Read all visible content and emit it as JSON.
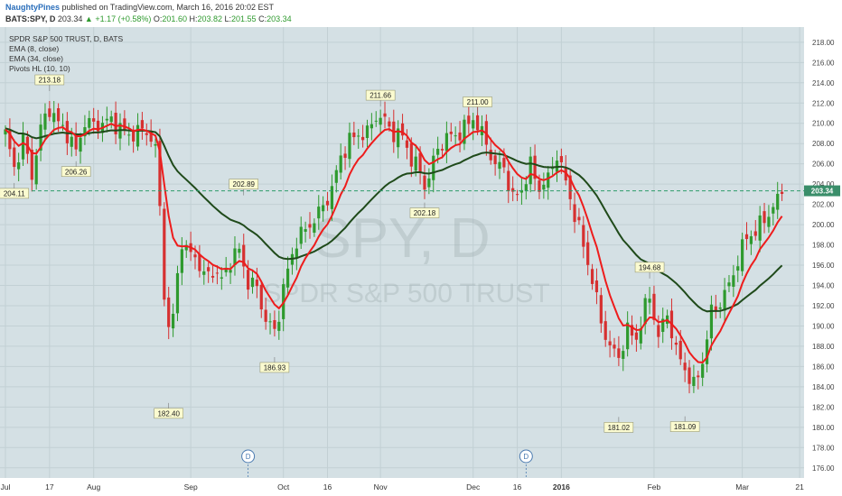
{
  "header": {
    "author": "NaughtyPines",
    "published": "published on TradingView.com, March 16, 2016 20:02 EST",
    "symbol": "BATS:SPY, D",
    "last": "203.34",
    "change": "+1.17 (+0.58%)",
    "o_label": "O:",
    "o_value": "201.60",
    "h_label": "H:",
    "h_value": "203.82",
    "l_label": "L:",
    "l_value": "201.55",
    "c_label": "C:",
    "c_value": "203.34"
  },
  "legend": {
    "title": "SPDR S&P 500 TRUST, D, BATS",
    "ema8": "EMA (8, close)",
    "ema34": "EMA (34, close)",
    "pivots": "Pivots HL (10, 10)"
  },
  "watermark": {
    "symbol": "SPY, D",
    "name": "SPDR S&P 500 TRUST"
  },
  "colors": {
    "background": "#d4e0e4",
    "grid": "#c2d0d4",
    "up": "#2e9a2e",
    "down": "#d63030",
    "ema8": "#ee1c1c",
    "ema34": "#1f4a1a",
    "price_line": "#2e9a6a",
    "pivot_label_bg": "#fbfbd0"
  },
  "chart_data": {
    "type": "candlestick",
    "yaxis_ticks": [
      "218.00",
      "216.00",
      "214.00",
      "212.00",
      "210.00",
      "208.00",
      "206.00",
      "204.00",
      "202.00",
      "200.00",
      "198.00",
      "196.00",
      "194.00",
      "192.00",
      "190.00",
      "188.00",
      "186.00",
      "184.00",
      "182.00",
      "180.00",
      "178.00",
      "176.00"
    ],
    "ylim": [
      175,
      219.5
    ],
    "xaxis_ticks": [
      {
        "label": "Jul",
        "i": 0
      },
      {
        "label": "17",
        "i": 10
      },
      {
        "label": "Aug",
        "i": 20
      },
      {
        "label": "Sep",
        "i": 42
      },
      {
        "label": "Oct",
        "i": 63
      },
      {
        "label": "16",
        "i": 73
      },
      {
        "label": "Nov",
        "i": 85
      },
      {
        "label": "Dec",
        "i": 106
      },
      {
        "label": "16",
        "i": 116
      },
      {
        "label": "2016",
        "i": 126
      },
      {
        "label": "Feb",
        "i": 147
      },
      {
        "label": "Mar",
        "i": 167
      },
      {
        "label": "21",
        "i": 180
      }
    ],
    "n_slots": 181,
    "current_price": 203.34,
    "current_label": "203.34",
    "pivots": [
      {
        "label": "213.18",
        "i": 10,
        "value": 213.18,
        "type": "high"
      },
      {
        "label": "206.26",
        "i": 16,
        "value": 206.26,
        "type": "low"
      },
      {
        "label": "204.11",
        "i": 2,
        "value": 204.11,
        "type": "low"
      },
      {
        "label": "202.89",
        "i": 54,
        "value": 202.89,
        "type": "high"
      },
      {
        "label": "182.40",
        "i": 37,
        "value": 182.4,
        "type": "low"
      },
      {
        "label": "186.93",
        "i": 61,
        "value": 186.93,
        "type": "low"
      },
      {
        "label": "211.66",
        "i": 85,
        "value": 211.66,
        "type": "high"
      },
      {
        "label": "202.18",
        "i": 95,
        "value": 202.18,
        "type": "low"
      },
      {
        "label": "211.00",
        "i": 107,
        "value": 211.0,
        "type": "high"
      },
      {
        "label": "194.68",
        "i": 146,
        "value": 194.68,
        "type": "high"
      },
      {
        "label": "181.02",
        "i": 139,
        "value": 181.02,
        "type": "low"
      },
      {
        "label": "181.09",
        "i": 154,
        "value": 181.09,
        "type": "low"
      }
    ],
    "dividend_markers": [
      {
        "label": "D",
        "i": 55
      },
      {
        "label": "D",
        "i": 118
      }
    ],
    "keypoints": [
      [
        0,
        209.0
      ],
      [
        2,
        205.5
      ],
      [
        4,
        208.5
      ],
      [
        6,
        204.8
      ],
      [
        8,
        209.5
      ],
      [
        10,
        211.5
      ],
      [
        12,
        210.0
      ],
      [
        14,
        209.0
      ],
      [
        16,
        207.2
      ],
      [
        18,
        210.2
      ],
      [
        20,
        209.8
      ],
      [
        22,
        210.0
      ],
      [
        24,
        210.3
      ],
      [
        26,
        209.5
      ],
      [
        28,
        208.8
      ],
      [
        30,
        209.2
      ],
      [
        32,
        209.3
      ],
      [
        34,
        207.5
      ],
      [
        35,
        201.5
      ],
      [
        36,
        193.5
      ],
      [
        37,
        189.5
      ],
      [
        38,
        191.0
      ],
      [
        39,
        195.0
      ],
      [
        40,
        198.5
      ],
      [
        41,
        197.3
      ],
      [
        43,
        197.0
      ],
      [
        45,
        194.8
      ],
      [
        47,
        195.5
      ],
      [
        49,
        194.5
      ],
      [
        51,
        196.5
      ],
      [
        53,
        197.5
      ],
      [
        55,
        194.3
      ],
      [
        57,
        193.8
      ],
      [
        59,
        190.5
      ],
      [
        61,
        189.5
      ],
      [
        62,
        191.3
      ],
      [
        63,
        193.6
      ],
      [
        64,
        195.5
      ],
      [
        66,
        198.5
      ],
      [
        68,
        199.5
      ],
      [
        70,
        200.5
      ],
      [
        72,
        201.8
      ],
      [
        74,
        203.5
      ],
      [
        76,
        206.7
      ],
      [
        78,
        208.3
      ],
      [
        80,
        208.9
      ],
      [
        82,
        209.0
      ],
      [
        84,
        210.8
      ],
      [
        86,
        210.2
      ],
      [
        88,
        209.0
      ],
      [
        90,
        208.7
      ],
      [
        92,
        206.5
      ],
      [
        94,
        205.2
      ],
      [
        95,
        203.8
      ],
      [
        96,
        204.8
      ],
      [
        98,
        207.5
      ],
      [
        100,
        208.6
      ],
      [
        102,
        208.8
      ],
      [
        104,
        209.5
      ],
      [
        106,
        210.5
      ],
      [
        107,
        209.8
      ],
      [
        109,
        208.0
      ],
      [
        111,
        205.8
      ],
      [
        113,
        205.7
      ],
      [
        115,
        202.5
      ],
      [
        117,
        203.5
      ],
      [
        119,
        205.8
      ],
      [
        121,
        203.6
      ],
      [
        123,
        204.5
      ],
      [
        125,
        207.0
      ],
      [
        127,
        204.2
      ],
      [
        129,
        201.0
      ],
      [
        131,
        198.0
      ],
      [
        133,
        194.5
      ],
      [
        135,
        190.5
      ],
      [
        137,
        187.8
      ],
      [
        139,
        187.0
      ],
      [
        141,
        189.5
      ],
      [
        143,
        188.8
      ],
      [
        145,
        191.8
      ],
      [
        146,
        193.0
      ],
      [
        148,
        188.9
      ],
      [
        150,
        191.3
      ],
      [
        152,
        187.5
      ],
      [
        154,
        185.8
      ],
      [
        156,
        184.0
      ],
      [
        158,
        186.5
      ],
      [
        160,
        191.3
      ],
      [
        162,
        192.3
      ],
      [
        164,
        194.0
      ],
      [
        166,
        196.5
      ],
      [
        168,
        198.8
      ],
      [
        170,
        199.3
      ],
      [
        172,
        200.6
      ],
      [
        174,
        201.6
      ],
      [
        176,
        203.4
      ]
    ]
  }
}
